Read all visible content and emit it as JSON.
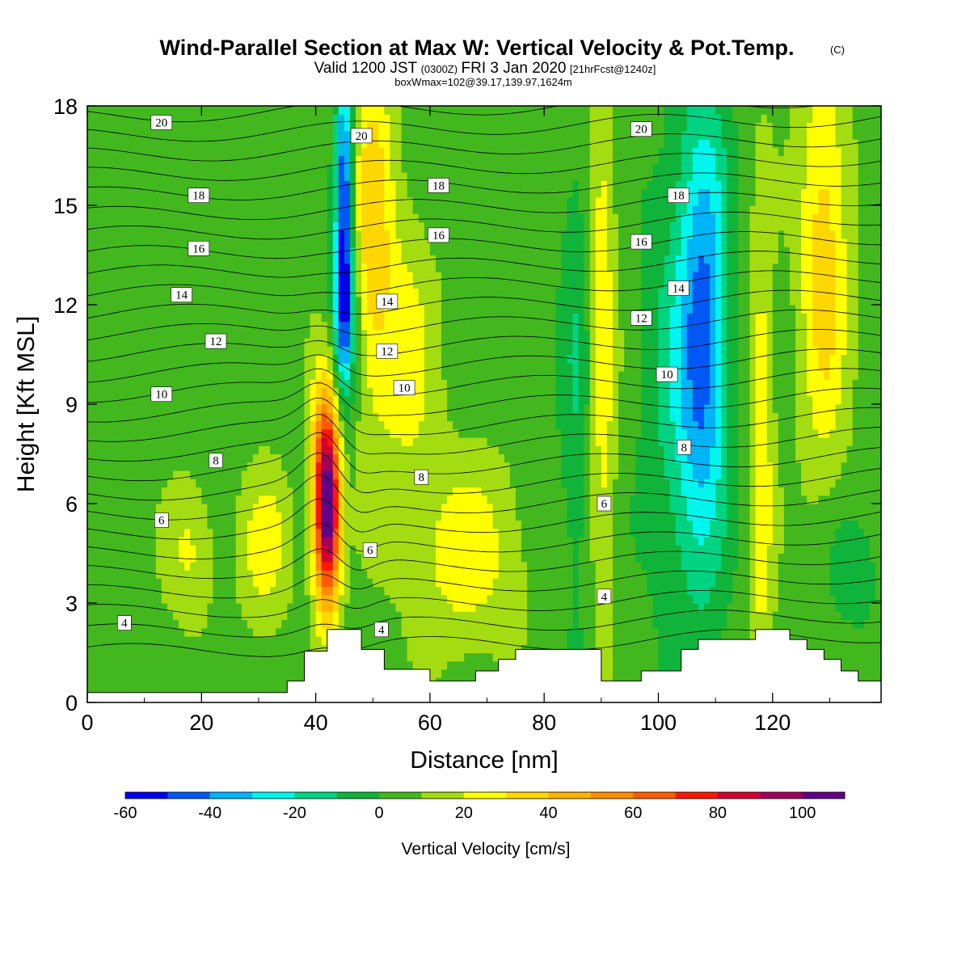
{
  "title": {
    "main": "Wind-Parallel Section at Max W: Vertical Velocity & Pot.Temp.",
    "copyright": "(C)",
    "valid_prefix": "Valid 1200 JST",
    "valid_z": "(0300Z)",
    "valid_date": "FRI 3 Jan 2020",
    "forecast": "[21hrFcst@1240z]",
    "boxmax": "boxWmax=102@39.17,139.97,1624m"
  },
  "chart_data": {
    "type": "heatmap",
    "xlabel": "Distance [nm]",
    "ylabel": "Height [Kft MSL]",
    "xlim": [
      0,
      139
    ],
    "ylim": [
      0,
      18
    ],
    "xticks": [
      0,
      20,
      40,
      60,
      80,
      100,
      120
    ],
    "yticks": [
      0,
      3,
      6,
      9,
      12,
      15,
      18
    ],
    "colorbar": {
      "label": "Vertical Velocity [cm/s]",
      "min": -60,
      "max": 110,
      "step": 10,
      "tick_labels": [
        -60,
        -40,
        -20,
        0,
        20,
        40,
        60,
        80,
        100
      ],
      "colors": [
        "#0000ee",
        "#0058f5",
        "#00b4f8",
        "#00f5ec",
        "#00d482",
        "#10b43a",
        "#42b81e",
        "#a3dc10",
        "#ffff00",
        "#ffd700",
        "#ffb300",
        "#ff8c00",
        "#ff5a00",
        "#ff1600",
        "#d00030",
        "#a0005a",
        "#620088"
      ]
    },
    "terrain_kft": [
      [
        0,
        0.3
      ],
      [
        35,
        0.3
      ],
      [
        35,
        0.65
      ],
      [
        38,
        0.65
      ],
      [
        38,
        1.55
      ],
      [
        42,
        1.55
      ],
      [
        42,
        2.2
      ],
      [
        48,
        2.2
      ],
      [
        48,
        1.6
      ],
      [
        52,
        1.6
      ],
      [
        52,
        1.0
      ],
      [
        60,
        1.0
      ],
      [
        60,
        0.65
      ],
      [
        68,
        0.65
      ],
      [
        68,
        0.95
      ],
      [
        72,
        0.95
      ],
      [
        72,
        1.3
      ],
      [
        75,
        1.3
      ],
      [
        75,
        1.6
      ],
      [
        90,
        1.6
      ],
      [
        90,
        0.65
      ],
      [
        97,
        0.65
      ],
      [
        97,
        0.95
      ],
      [
        104,
        0.95
      ],
      [
        104,
        1.6
      ],
      [
        107,
        1.6
      ],
      [
        107,
        1.9
      ],
      [
        117,
        1.9
      ],
      [
        117,
        2.2
      ],
      [
        123,
        2.2
      ],
      [
        123,
        1.9
      ],
      [
        126,
        1.9
      ],
      [
        126,
        1.6
      ],
      [
        129,
        1.6
      ],
      [
        129,
        1.3
      ],
      [
        132,
        1.3
      ],
      [
        132,
        0.95
      ],
      [
        135,
        0.95
      ],
      [
        135,
        0.65
      ],
      [
        139,
        0.65
      ]
    ],
    "vertical_velocity_features": [
      {
        "x": 42,
        "y": 5.7,
        "sx": 1.6,
        "sy": 2.0,
        "value": 102
      },
      {
        "x": 41.5,
        "y": 8.2,
        "sx": 1.8,
        "sy": 1.7,
        "value": 22
      },
      {
        "x": 45,
        "y": 14.8,
        "sx": 1.1,
        "sy": 3.4,
        "value": -60
      },
      {
        "x": 45,
        "y": 11.5,
        "sx": 1.6,
        "sy": 1.5,
        "value": -28
      },
      {
        "x": 50,
        "y": 14.5,
        "sx": 2.5,
        "sy": 4.0,
        "value": 30
      },
      {
        "x": 56,
        "y": 10.5,
        "sx": 3.5,
        "sy": 3.0,
        "value": 18
      },
      {
        "x": 66,
        "y": 4.5,
        "sx": 7.0,
        "sy": 2.0,
        "value": 20
      },
      {
        "x": 31,
        "y": 4.7,
        "sx": 3.0,
        "sy": 1.6,
        "value": 20
      },
      {
        "x": 18,
        "y": 4.5,
        "sx": 3.0,
        "sy": 1.5,
        "value": 15
      },
      {
        "x": 90,
        "y": 11,
        "sx": 1.8,
        "sy": 6.0,
        "value": 24
      },
      {
        "x": 86,
        "y": 10,
        "sx": 2.5,
        "sy": 6.0,
        "value": -16
      },
      {
        "x": 108,
        "y": 11.5,
        "sx": 3.0,
        "sy": 5.0,
        "value": -38
      },
      {
        "x": 104,
        "y": 9.5,
        "sx": 5.0,
        "sy": 5.5,
        "value": -20
      },
      {
        "x": 118,
        "y": 7.5,
        "sx": 1.5,
        "sy": 5.5,
        "value": 22
      },
      {
        "x": 129,
        "y": 13.5,
        "sx": 3.0,
        "sy": 4.5,
        "value": 30
      },
      {
        "x": 134,
        "y": 4.0,
        "sx": 4.0,
        "sy": 1.5,
        "value": -12
      }
    ],
    "potential_temperature_labels": [
      {
        "text": "20",
        "x": 13,
        "y": 17.5
      },
      {
        "text": "20",
        "x": 48,
        "y": 17.1
      },
      {
        "text": "20",
        "x": 97,
        "y": 17.3
      },
      {
        "text": "18",
        "x": 19.5,
        "y": 15.3
      },
      {
        "text": "18",
        "x": 61.5,
        "y": 15.6
      },
      {
        "text": "18",
        "x": 103.5,
        "y": 15.3
      },
      {
        "text": "16",
        "x": 19.5,
        "y": 13.7
      },
      {
        "text": "16",
        "x": 61.5,
        "y": 14.1
      },
      {
        "text": "16",
        "x": 97,
        "y": 13.9
      },
      {
        "text": "14",
        "x": 16.5,
        "y": 12.3
      },
      {
        "text": "14",
        "x": 52.5,
        "y": 12.1
      },
      {
        "text": "14",
        "x": 103.5,
        "y": 12.5
      },
      {
        "text": "12",
        "x": 22.5,
        "y": 10.9
      },
      {
        "text": "12",
        "x": 52.5,
        "y": 10.6
      },
      {
        "text": "12",
        "x": 97,
        "y": 11.6
      },
      {
        "text": "10",
        "x": 13,
        "y": 9.3
      },
      {
        "text": "10",
        "x": 55.5,
        "y": 9.5
      },
      {
        "text": "10",
        "x": 101.5,
        "y": 9.9
      },
      {
        "text": "8",
        "x": 22.5,
        "y": 7.3
      },
      {
        "text": "8",
        "x": 58.5,
        "y": 6.8
      },
      {
        "text": "8",
        "x": 104.5,
        "y": 7.7
      },
      {
        "text": "6",
        "x": 13,
        "y": 5.5
      },
      {
        "text": "6",
        "x": 49.5,
        "y": 4.6
      },
      {
        "text": "6",
        "x": 90.5,
        "y": 6.0
      },
      {
        "text": "4",
        "x": 6.5,
        "y": 2.4
      },
      {
        "text": "4",
        "x": 51.5,
        "y": 2.2
      },
      {
        "text": "4",
        "x": 90.5,
        "y": 3.2
      }
    ]
  }
}
